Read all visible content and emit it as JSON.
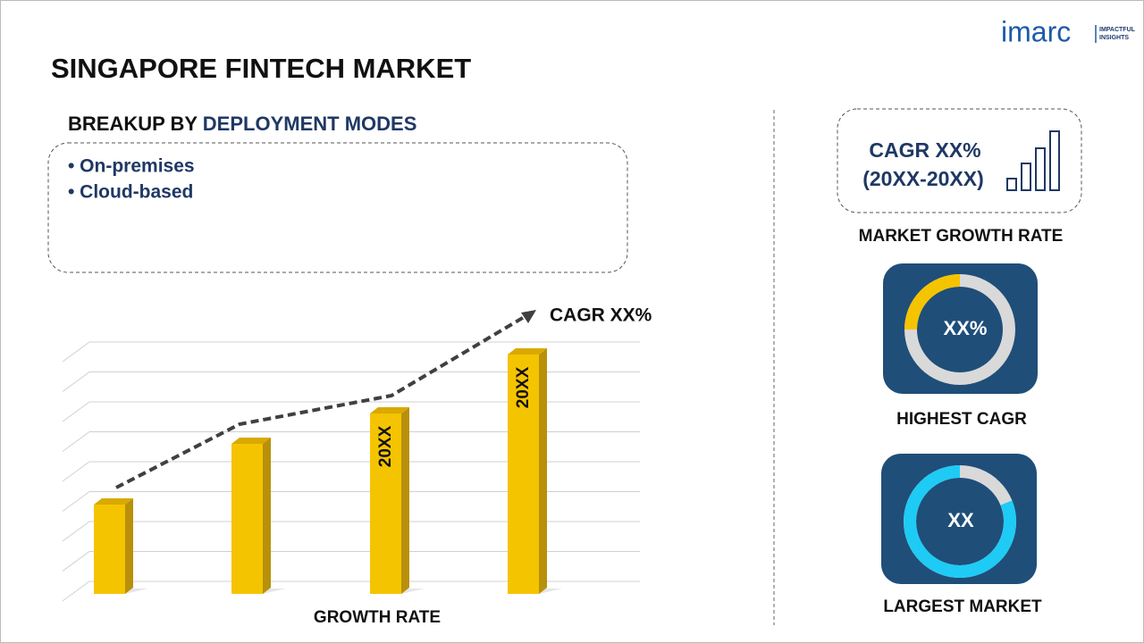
{
  "logo": {
    "name": "imarc",
    "tagline": [
      "IMPACTFUL",
      "INSIGHTS"
    ]
  },
  "title": "SINGAPORE FINTECH MARKET",
  "breakup": {
    "prefix": "BREAKUP BY",
    "highlight": "DEPLOYMENT MODES",
    "items": [
      "• On-premises",
      "• Cloud-based"
    ]
  },
  "growth_chart": {
    "cagr": "CAGR XX%",
    "bar_labels": [
      "20XX",
      "20XX"
    ],
    "caption": "GROWTH RATE"
  },
  "market_growth": {
    "cagr": "CAGR XX%",
    "period": "(20XX-20XX)",
    "caption": "MARKET GROWTH RATE"
  },
  "highest_cagr": {
    "value": "XX%",
    "caption": "HIGHEST CAGR"
  },
  "largest_market": {
    "value": "XX",
    "caption": "LARGEST MARKET"
  }
}
